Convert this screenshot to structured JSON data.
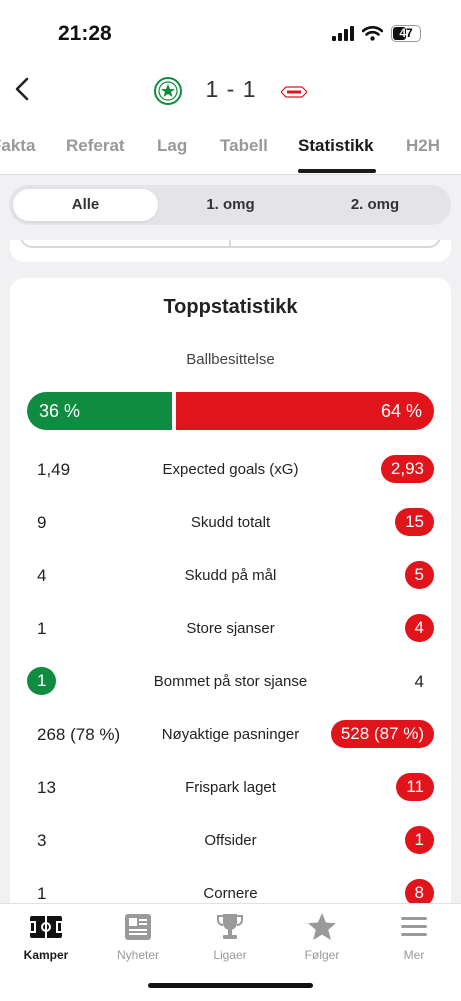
{
  "status_bar": {
    "time": "21:28",
    "battery": "47"
  },
  "header": {
    "score": "1 - 1",
    "home_logo": "home-club-crest",
    "away_logo": "brann-logo"
  },
  "tabs": [
    "Fakta",
    "Referat",
    "Lag",
    "Tabell",
    "Statistikk",
    "H2H"
  ],
  "active_tab": "Statistikk",
  "periods": [
    "Alle",
    "1. omg",
    "2. omg"
  ],
  "active_period": "Alle",
  "top_stats": {
    "title": "Toppstatistikk",
    "possession": {
      "label": "Ballbesittelse",
      "home": "36 %",
      "away": "64 %",
      "home_fraction": 0.36,
      "away_fraction": 0.64
    },
    "rows": [
      {
        "label": "Expected goals (xG)",
        "home": "1,49",
        "away": "2,93",
        "highlight": "away"
      },
      {
        "label": "Skudd totalt",
        "home": "9",
        "away": "15",
        "highlight": "away"
      },
      {
        "label": "Skudd på mål",
        "home": "4",
        "away": "5",
        "highlight": "away"
      },
      {
        "label": "Store sjanser",
        "home": "1",
        "away": "4",
        "highlight": "away"
      },
      {
        "label": "Bommet på stor sjanse",
        "home": "1",
        "away": "4",
        "highlight": "home"
      },
      {
        "label": "Nøyaktige pasninger",
        "home": "268 (78 %)",
        "away": "528 (87 %)",
        "highlight": "away"
      },
      {
        "label": "Frispark laget",
        "home": "13",
        "away": "11",
        "highlight": "away"
      },
      {
        "label": "Offsider",
        "home": "3",
        "away": "1",
        "highlight": "away"
      },
      {
        "label": "Cornere",
        "home": "1",
        "away": "8",
        "highlight": "away"
      }
    ]
  },
  "bottom_nav": [
    {
      "label": "Kamper",
      "icon": "pitch-icon",
      "active": true
    },
    {
      "label": "Nyheter",
      "icon": "newspaper-icon",
      "active": false
    },
    {
      "label": "Ligaer",
      "icon": "trophy-icon",
      "active": false
    },
    {
      "label": "Følger",
      "icon": "star-icon",
      "active": false
    },
    {
      "label": "Mer",
      "icon": "menu-icon",
      "active": false
    }
  ],
  "colors": {
    "home": "#0f8c3f",
    "away": "#e1141c"
  }
}
